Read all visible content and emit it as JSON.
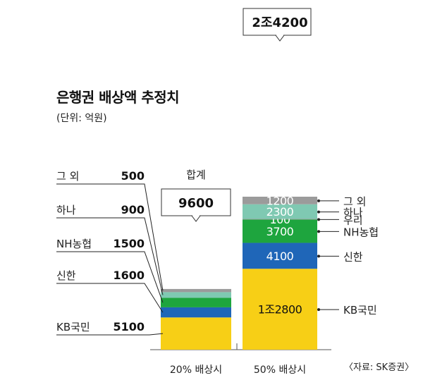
{
  "title": "은행권 배상액 추정치",
  "unit": "(단위: 억원)",
  "source": "〈자료: SK증권〉",
  "total_caption": "합계",
  "colors": {
    "KB국민": "#f7cf16",
    "신한": "#1f66b8",
    "NH농협": "#1ea53e",
    "우리": "#8d9596",
    "하나": "#7fc9b2",
    "그 외": "#9b9b9b",
    "axis": "#555555",
    "box_border": "#333333"
  },
  "chart_data": {
    "type": "bar",
    "stacked": true,
    "categories": [
      "20% 배상시",
      "50% 배상시"
    ],
    "series": [
      {
        "name": "KB국민",
        "values": [
          5100,
          12800
        ],
        "labels": [
          "5100",
          "1조2800"
        ]
      },
      {
        "name": "신한",
        "values": [
          1600,
          4100
        ],
        "labels": [
          "1600",
          "4100"
        ]
      },
      {
        "name": "NH농협",
        "values": [
          1500,
          3700
        ],
        "labels": [
          "1500",
          "3700"
        ]
      },
      {
        "name": "우리",
        "values": [
          0,
          100
        ],
        "labels": [
          "",
          "100"
        ]
      },
      {
        "name": "하나",
        "values": [
          900,
          2300
        ],
        "labels": [
          "900",
          "2300"
        ]
      },
      {
        "name": "그 외",
        "values": [
          500,
          1200
        ],
        "labels": [
          "500",
          "1200"
        ]
      }
    ],
    "totals": [
      "9600",
      "2조4200"
    ],
    "ylim": [
      0,
      24200
    ],
    "grid": false
  }
}
